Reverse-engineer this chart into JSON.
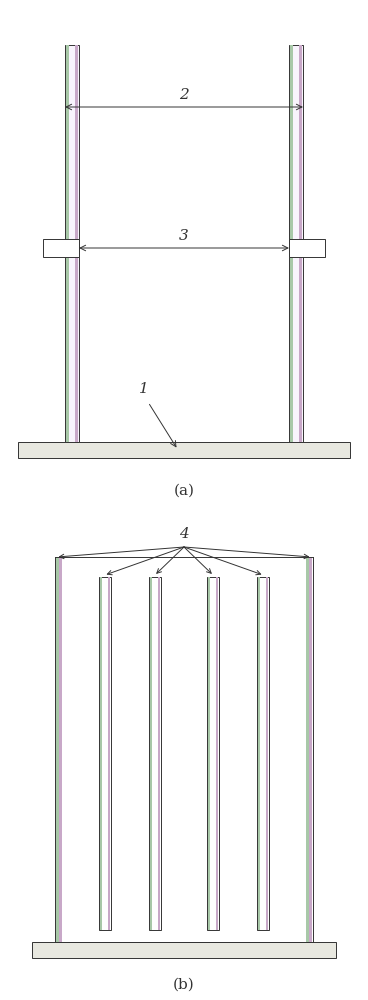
{
  "bg_color": "#ffffff",
  "line_color": "#333333",
  "green_strip": "#a8c8a8",
  "pink_strip": "#c8a8c8",
  "base_fill": "#e8e8e0",
  "fig_label_a": "(a)",
  "fig_label_b": "(b)",
  "label_1": "1",
  "label_2": "2",
  "label_3": "3",
  "label_4": "4",
  "pillar_fill": "#f8f4fc",
  "frame_fill": "none"
}
